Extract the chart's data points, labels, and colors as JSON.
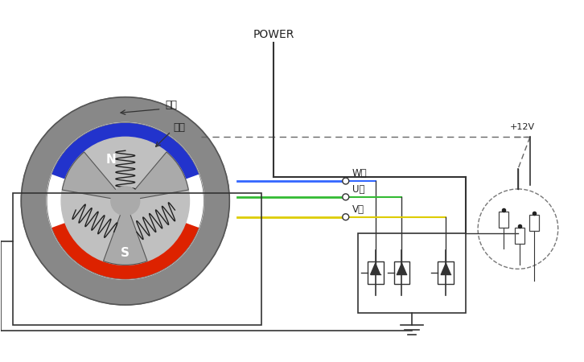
{
  "bg_color": "#ffffff",
  "line_color": "#333333",
  "gray_ring_color": "#909090",
  "gray_inner_color": "#b8b8b8",
  "red_magnet": "#dd2200",
  "blue_magnet": "#2233cc",
  "wire_W_color": "#3366ff",
  "wire_U_color": "#33bb33",
  "wire_V_color": "#ddcc00",
  "label_转子": "转子",
  "label_定子": "定子",
  "label_N": "N",
  "label_S": "S",
  "label_POWER": "POWER",
  "label_12V": "+12V",
  "label_W": "W相",
  "label_U": "U相",
  "label_V": "V相"
}
